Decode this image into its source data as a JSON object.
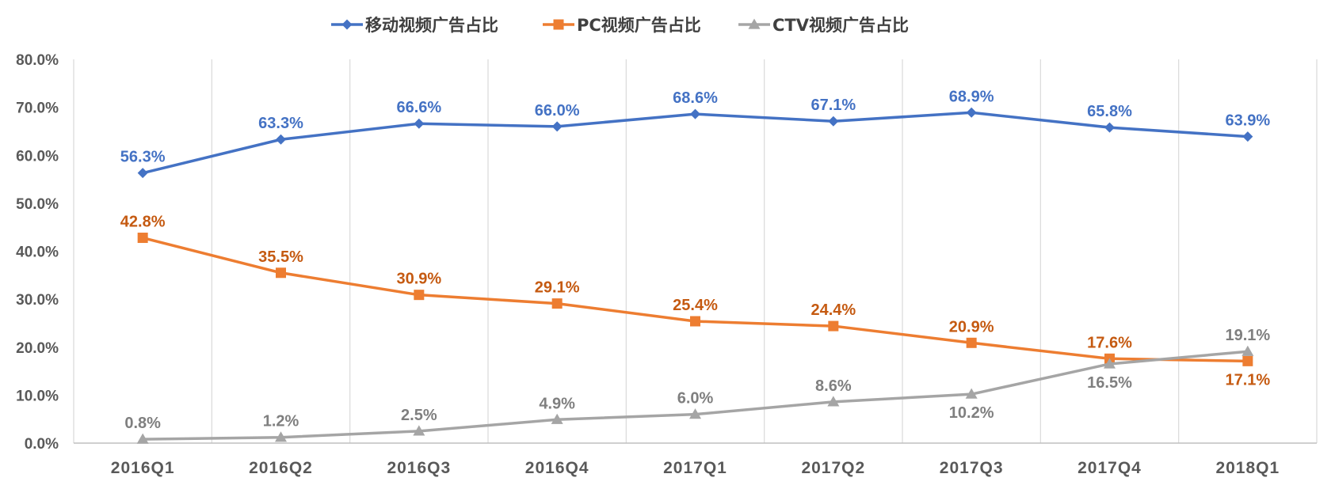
{
  "chart_data": {
    "type": "line",
    "title": "",
    "xlabel": "",
    "ylabel": "",
    "categories": [
      "2016Q1",
      "2016Q2",
      "2016Q3",
      "2016Q4",
      "2017Q1",
      "2017Q2",
      "2017Q3",
      "2017Q4",
      "2018Q1"
    ],
    "ylim": [
      0,
      80
    ],
    "yticks": [
      0,
      10,
      20,
      30,
      40,
      50,
      60,
      70,
      80
    ],
    "ytick_labels": [
      "0.0%",
      "10.0%",
      "20.0%",
      "30.0%",
      "40.0%",
      "50.0%",
      "60.0%",
      "70.0%",
      "80.0%"
    ],
    "grid": "vertical",
    "legend_position": "top",
    "series": [
      {
        "name": "移动视频广告占比",
        "marker": "diamond",
        "color": "#4472C4",
        "label_color": "#4472C4",
        "values": [
          56.3,
          63.3,
          66.6,
          66.0,
          68.6,
          67.1,
          68.9,
          65.8,
          63.9
        ],
        "labels": [
          "56.3%",
          "63.3%",
          "66.6%",
          "66.0%",
          "68.6%",
          "67.1%",
          "68.9%",
          "65.8%",
          "63.9%"
        ],
        "label_side": [
          "above",
          "above",
          "above",
          "above",
          "above",
          "above",
          "above",
          "above",
          "above"
        ]
      },
      {
        "name": "PC视频广告占比",
        "marker": "square",
        "color": "#ED7D31",
        "label_color": "#C55A11",
        "values": [
          42.8,
          35.5,
          30.9,
          29.1,
          25.4,
          24.4,
          20.9,
          17.6,
          17.1
        ],
        "labels": [
          "42.8%",
          "35.5%",
          "30.9%",
          "29.1%",
          "25.4%",
          "24.4%",
          "20.9%",
          "17.6%",
          "17.1%"
        ],
        "label_side": [
          "above",
          "above",
          "above",
          "above",
          "above",
          "above",
          "above",
          "above",
          "below"
        ]
      },
      {
        "name": "CTV视频广告占比",
        "marker": "triangle",
        "color": "#A5A5A5",
        "label_color": "#7F7F7F",
        "values": [
          0.8,
          1.2,
          2.5,
          4.9,
          6.0,
          8.6,
          10.2,
          16.5,
          19.1
        ],
        "labels": [
          "0.8%",
          "1.2%",
          "2.5%",
          "4.9%",
          "6.0%",
          "8.6%",
          "10.2%",
          "16.5%",
          "19.1%"
        ],
        "label_side": [
          "above",
          "above",
          "above",
          "above",
          "above",
          "above",
          "below",
          "below",
          "above"
        ]
      }
    ]
  }
}
